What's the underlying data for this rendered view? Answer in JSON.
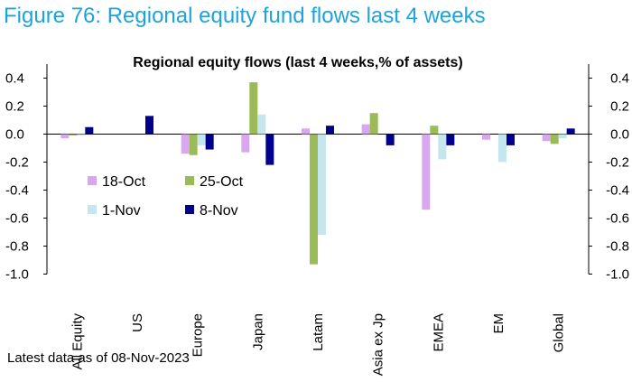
{
  "figure_title": "Figure 76: Regional equity fund flows last 4 weeks",
  "footnote": "Latest data as of 08-Nov-2023",
  "chart_data": {
    "type": "bar",
    "title": "Regional equity flows (last 4 weeks,% of assets)",
    "categories": [
      "All Equity",
      "US",
      "Europe",
      "Japan",
      "Latam",
      "Asia ex Jp",
      "EMEA",
      "EM",
      "Global"
    ],
    "series": [
      {
        "name": "18-Oct",
        "color": "#d9a6f0",
        "values": [
          -0.03,
          0.0,
          -0.14,
          -0.13,
          0.04,
          0.07,
          -0.54,
          -0.04,
          -0.05
        ]
      },
      {
        "name": "25-Oct",
        "color": "#9bbb59",
        "values": [
          -0.01,
          0.0,
          -0.15,
          0.37,
          -0.93,
          0.15,
          0.06,
          0.0,
          -0.07
        ]
      },
      {
        "name": "1-Nov",
        "color": "#c5e6ef",
        "values": [
          -0.01,
          0.0,
          -0.08,
          0.14,
          -0.72,
          0.0,
          -0.18,
          -0.2,
          -0.03
        ]
      },
      {
        "name": "8-Nov",
        "color": "#00008b",
        "values": [
          0.05,
          0.13,
          -0.11,
          -0.22,
          0.06,
          -0.08,
          -0.08,
          -0.08,
          0.04
        ]
      }
    ],
    "ylim": [
      -1.0,
      0.5
    ],
    "yticks": [
      "0.4",
      "0.2",
      "0.0",
      "-0.2",
      "-0.4",
      "-0.6",
      "-0.8",
      "-1.0"
    ],
    "ytick_values": [
      0.4,
      0.2,
      0.0,
      -0.2,
      -0.4,
      -0.6,
      -0.8,
      -1.0
    ],
    "xlabel": "",
    "ylabel": "",
    "legend_position": "left-middle",
    "grid": false,
    "secondary_axis": true
  }
}
